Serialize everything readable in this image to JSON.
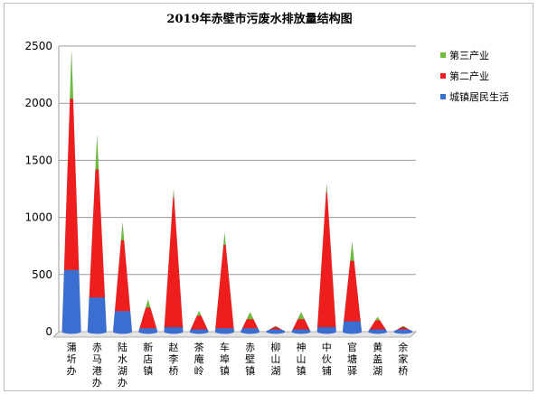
{
  "chart_data": {
    "type": "bar",
    "title": "2019年赤壁市污废水排放量结构图",
    "xlabel": "",
    "ylabel": "",
    "ylim": [
      0,
      2500
    ],
    "yticks": [
      "0",
      "500",
      "1000",
      "1500",
      "2000",
      "2500"
    ],
    "grid": true,
    "legend_position": "right",
    "categories": [
      "蒲圻办",
      "赤马港办",
      "陆水湖办",
      "新店镇",
      "赵李桥",
      "茶庵岭",
      "车埠镇",
      "赤壁镇",
      "柳山湖",
      "神山镇",
      "中伙铺",
      "官塘驿",
      "黄盖湖",
      "余家桥"
    ],
    "series": [
      {
        "name": "城镇居民生活",
        "color": "#3a6fd1",
        "values": [
          540,
          300,
          180,
          30,
          40,
          20,
          30,
          30,
          10,
          20,
          40,
          90,
          20,
          10
        ]
      },
      {
        "name": "第二产业",
        "color": "#ef1e1e",
        "values": [
          1500,
          1120,
          620,
          180,
          1140,
          120,
          730,
          80,
          30,
          90,
          1180,
          530,
          80,
          30
        ]
      },
      {
        "name": "第三产业",
        "color": "#6cbf3a",
        "values": [
          410,
          290,
          150,
          70,
          60,
          40,
          100,
          60,
          10,
          60,
          70,
          160,
          30,
          10
        ]
      }
    ]
  }
}
